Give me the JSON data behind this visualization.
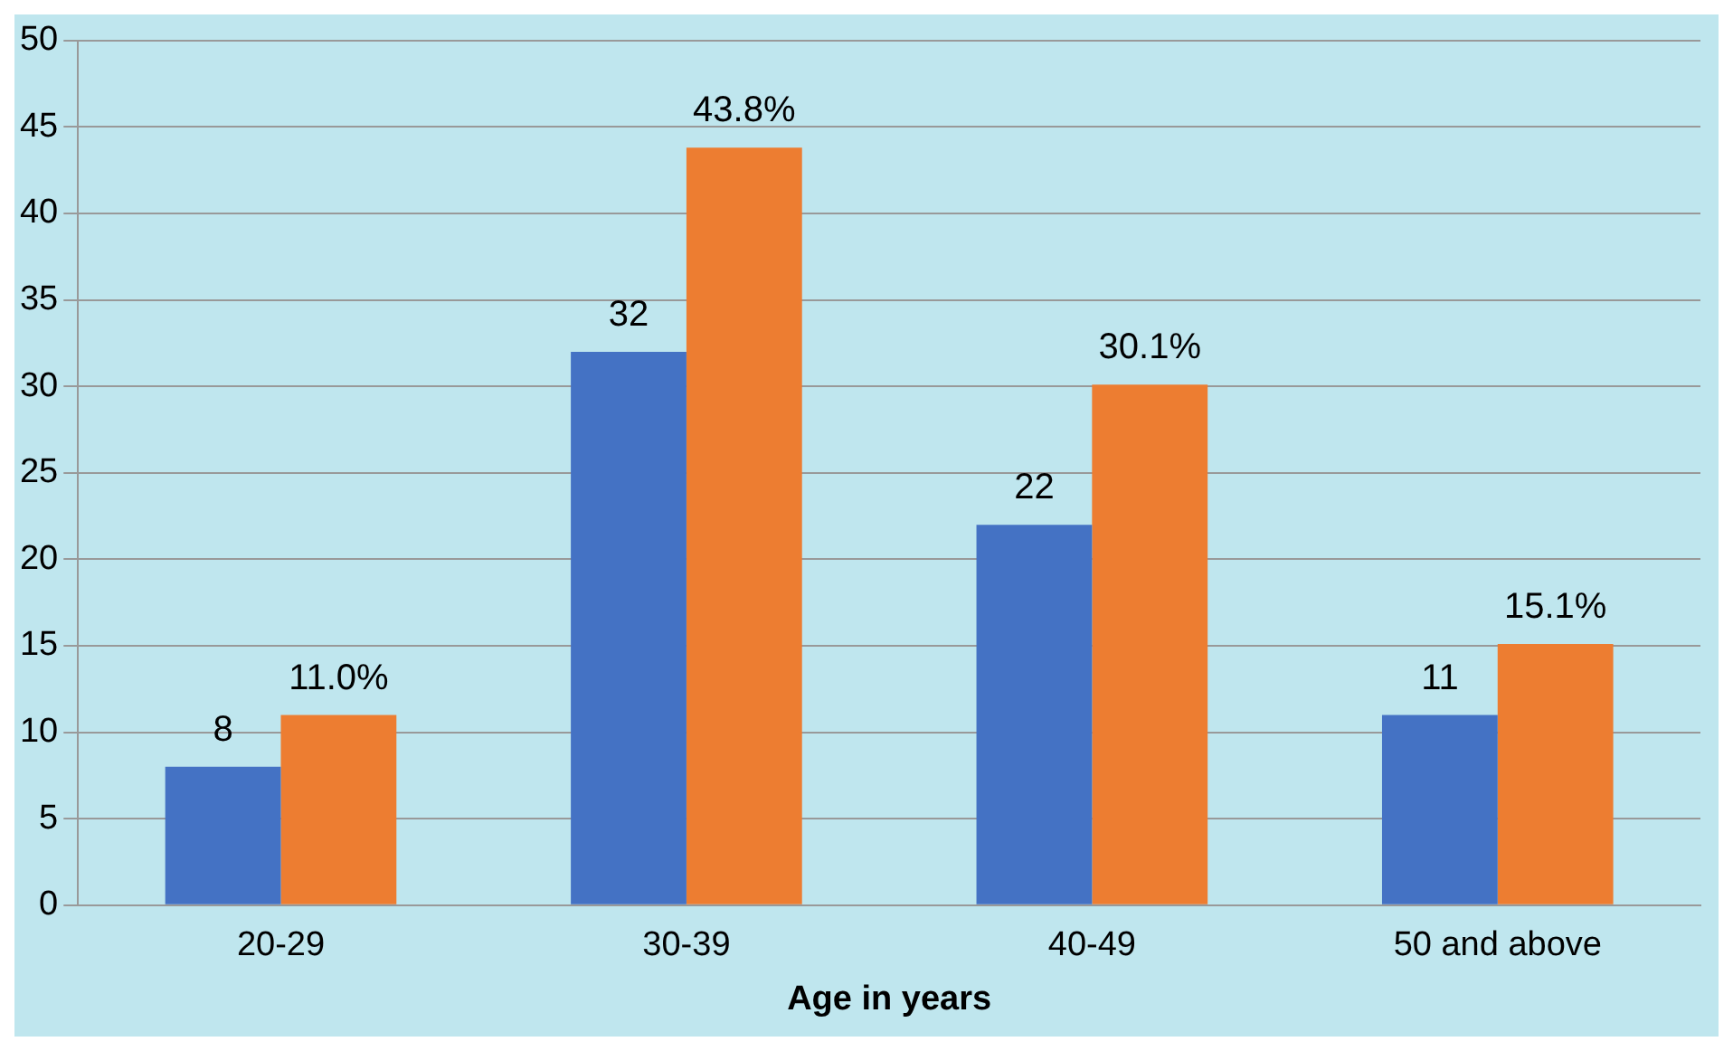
{
  "chart_data": {
    "type": "bar",
    "xlabel": "Age in years",
    "categories": [
      "20-29",
      "30-39",
      "40-49",
      "50 and above"
    ],
    "series": [
      {
        "color": "#4472c4",
        "values": [
          8,
          32,
          22,
          11
        ],
        "value_labels": [
          "8",
          "32",
          "22",
          "11"
        ]
      },
      {
        "color": "#ed7d31",
        "values": [
          11.0,
          43.8,
          30.1,
          15.1
        ],
        "value_labels": [
          "11.0%",
          "43.8%",
          "30.1%",
          "15.1%"
        ]
      }
    ],
    "ylim": [
      0,
      50
    ],
    "yticks": [
      0,
      5,
      10,
      15,
      20,
      25,
      30,
      35,
      40,
      45,
      50
    ],
    "grid": "y",
    "legend": false
  }
}
